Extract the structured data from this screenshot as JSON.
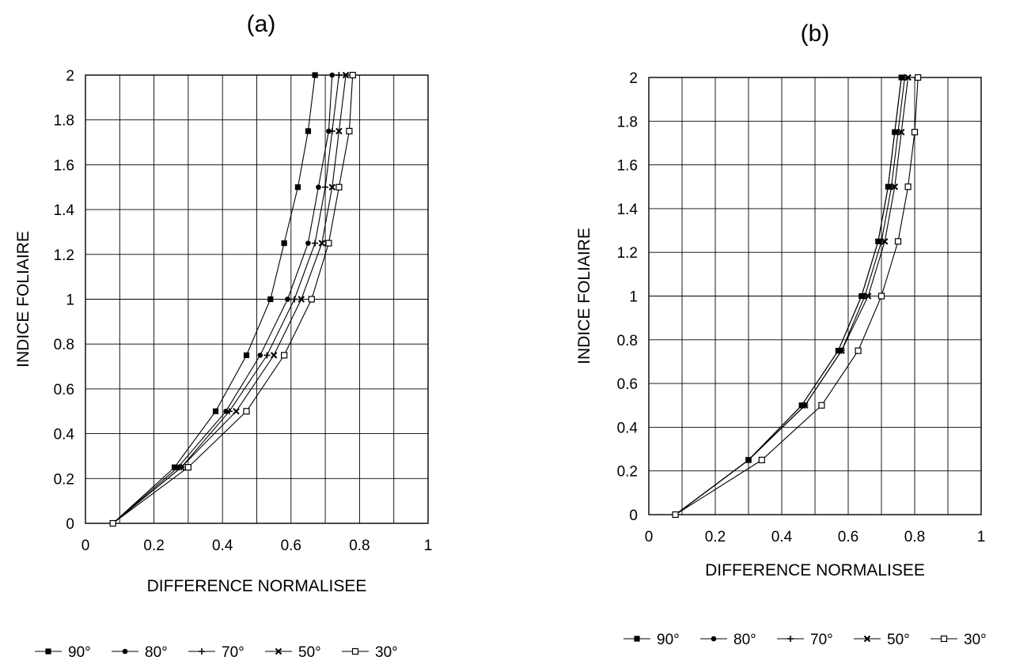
{
  "chart_data": [
    {
      "type": "line",
      "title": "(a)",
      "xlabel": "DIFFERENCE NORMALISEE",
      "ylabel": "INDICE FOLIAIRE",
      "xlim": [
        0,
        1
      ],
      "ylim": [
        0,
        2
      ],
      "xticks": [
        "0",
        "0.2",
        "0.4",
        "0.6",
        "0.8",
        "1"
      ],
      "yticks": [
        "0",
        "0.2",
        "0.4",
        "0.6",
        "0.8",
        "1",
        "1.2",
        "1.4",
        "1.6",
        "1.8",
        "2"
      ],
      "grid": true,
      "legend_position": "bottom",
      "series": [
        {
          "name": "90°",
          "marker": "filled-square",
          "points": [
            [
              0.08,
              0
            ],
            [
              0.26,
              0.25
            ],
            [
              0.38,
              0.5
            ],
            [
              0.47,
              0.75
            ],
            [
              0.54,
              1.0
            ],
            [
              0.58,
              1.25
            ],
            [
              0.62,
              1.5
            ],
            [
              0.65,
              1.75
            ],
            [
              0.67,
              2.0
            ]
          ]
        },
        {
          "name": "80°",
          "marker": "filled-circle",
          "points": [
            [
              0.08,
              0
            ],
            [
              0.27,
              0.25
            ],
            [
              0.41,
              0.5
            ],
            [
              0.51,
              0.75
            ],
            [
              0.59,
              1.0
            ],
            [
              0.65,
              1.25
            ],
            [
              0.68,
              1.5
            ],
            [
              0.71,
              1.75
            ],
            [
              0.72,
              2.0
            ]
          ]
        },
        {
          "name": "70°",
          "marker": "plus",
          "points": [
            [
              0.08,
              0
            ],
            [
              0.28,
              0.25
            ],
            [
              0.42,
              0.5
            ],
            [
              0.53,
              0.75
            ],
            [
              0.61,
              1.0
            ],
            [
              0.67,
              1.25
            ],
            [
              0.7,
              1.5
            ],
            [
              0.72,
              1.75
            ],
            [
              0.74,
              2.0
            ]
          ]
        },
        {
          "name": "50°",
          "marker": "x-cross",
          "points": [
            [
              0.08,
              0
            ],
            [
              0.28,
              0.25
            ],
            [
              0.44,
              0.5
            ],
            [
              0.55,
              0.75
            ],
            [
              0.63,
              1.0
            ],
            [
              0.69,
              1.25
            ],
            [
              0.72,
              1.5
            ],
            [
              0.74,
              1.75
            ],
            [
              0.76,
              2.0
            ]
          ]
        },
        {
          "name": "30°",
          "marker": "open-square",
          "points": [
            [
              0.08,
              0
            ],
            [
              0.3,
              0.25
            ],
            [
              0.47,
              0.5
            ],
            [
              0.58,
              0.75
            ],
            [
              0.66,
              1.0
            ],
            [
              0.71,
              1.25
            ],
            [
              0.74,
              1.5
            ],
            [
              0.77,
              1.75
            ],
            [
              0.78,
              2.0
            ]
          ]
        }
      ]
    },
    {
      "type": "line",
      "title": "(b)",
      "xlabel": "DIFFERENCE NORMALISEE",
      "ylabel": "INDICE FOLIAIRE",
      "xlim": [
        0,
        1
      ],
      "ylim": [
        0,
        2
      ],
      "xticks": [
        "0",
        "0.2",
        "0.4",
        "0.6",
        "0.8",
        "1"
      ],
      "yticks": [
        "0",
        "0.2",
        "0.4",
        "0.6",
        "0.8",
        "1",
        "1.2",
        "1.4",
        "1.6",
        "1.8",
        "2"
      ],
      "grid": true,
      "legend_position": "bottom",
      "series": [
        {
          "name": "90°",
          "marker": "filled-square",
          "points": [
            [
              0.08,
              0
            ],
            [
              0.3,
              0.25
            ],
            [
              0.46,
              0.5
            ],
            [
              0.57,
              0.75
            ],
            [
              0.64,
              1.0
            ],
            [
              0.69,
              1.25
            ],
            [
              0.72,
              1.5
            ],
            [
              0.74,
              1.75
            ],
            [
              0.76,
              2.0
            ]
          ]
        },
        {
          "name": "80°",
          "marker": "filled-circle",
          "points": [
            [
              0.08,
              0
            ],
            [
              0.3,
              0.25
            ],
            [
              0.46,
              0.5
            ],
            [
              0.57,
              0.75
            ],
            [
              0.64,
              1.0
            ],
            [
              0.69,
              1.25
            ],
            [
              0.72,
              1.5
            ],
            [
              0.74,
              1.75
            ],
            [
              0.76,
              2.0
            ]
          ]
        },
        {
          "name": "70°",
          "marker": "plus",
          "points": [
            [
              0.08,
              0
            ],
            [
              0.3,
              0.25
            ],
            [
              0.47,
              0.5
            ],
            [
              0.58,
              0.75
            ],
            [
              0.65,
              1.0
            ],
            [
              0.7,
              1.25
            ],
            [
              0.73,
              1.5
            ],
            [
              0.75,
              1.75
            ],
            [
              0.77,
              2.0
            ]
          ]
        },
        {
          "name": "50°",
          "marker": "x-cross",
          "points": [
            [
              0.08,
              0
            ],
            [
              0.3,
              0.25
            ],
            [
              0.47,
              0.5
            ],
            [
              0.58,
              0.75
            ],
            [
              0.66,
              1.0
            ],
            [
              0.71,
              1.25
            ],
            [
              0.74,
              1.5
            ],
            [
              0.76,
              1.75
            ],
            [
              0.78,
              2.0
            ]
          ]
        },
        {
          "name": "30°",
          "marker": "open-square",
          "points": [
            [
              0.08,
              0
            ],
            [
              0.34,
              0.25
            ],
            [
              0.52,
              0.5
            ],
            [
              0.63,
              0.75
            ],
            [
              0.7,
              1.0
            ],
            [
              0.75,
              1.25
            ],
            [
              0.78,
              1.5
            ],
            [
              0.8,
              1.75
            ],
            [
              0.81,
              2.0
            ]
          ]
        }
      ]
    }
  ]
}
